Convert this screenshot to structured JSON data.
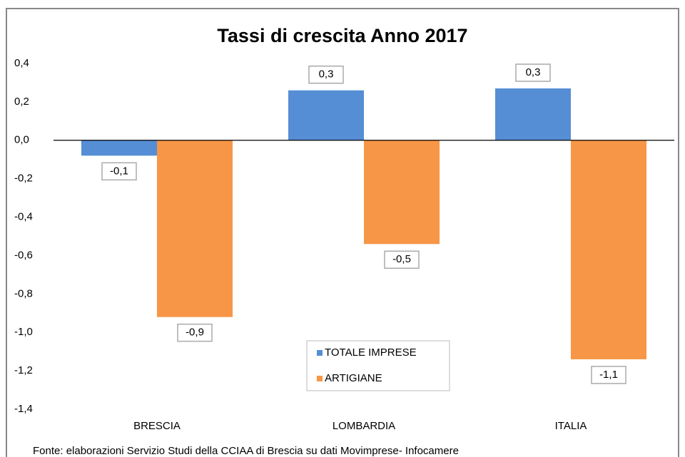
{
  "chart_data": {
    "type": "bar",
    "title": "Tassi di crescita Anno 2017",
    "categories": [
      "BRESCIA",
      "LOMBARDIA",
      "ITALIA"
    ],
    "series": [
      {
        "name": "TOTALE IMPRESE",
        "color": "#558ed5",
        "values": [
          -0.08,
          0.26,
          0.27
        ],
        "value_labels": [
          "-0,1",
          "0,3",
          "0,3"
        ]
      },
      {
        "name": "ARTIGIANE",
        "color": "#f79646",
        "values": [
          -0.92,
          -0.54,
          -1.14
        ],
        "value_labels": [
          "-0,9",
          "-0,5",
          "-1,1"
        ]
      }
    ],
    "ylim": [
      -1.4,
      0.4
    ],
    "yticks": [
      {
        "value": 0.4,
        "label": "0,4"
      },
      {
        "value": 0.2,
        "label": "0,2"
      },
      {
        "value": 0,
        "label": "0,0"
      },
      {
        "value": -0.2,
        "label": "-0,2"
      },
      {
        "value": -0.4,
        "label": "-0,4"
      },
      {
        "value": -0.6,
        "label": "-0,6"
      },
      {
        "value": -0.8,
        "label": "-0,8"
      },
      {
        "value": -1.0,
        "label": "-1,0"
      },
      {
        "value": -1.2,
        "label": "-1,2"
      },
      {
        "value": -1.4,
        "label": "-1,4"
      }
    ],
    "legend": "bottom-center",
    "source": "Fonte: elaborazioni  Servizio Studi della CCIAA di Brescia su dati Movimprese- Infocamere"
  }
}
